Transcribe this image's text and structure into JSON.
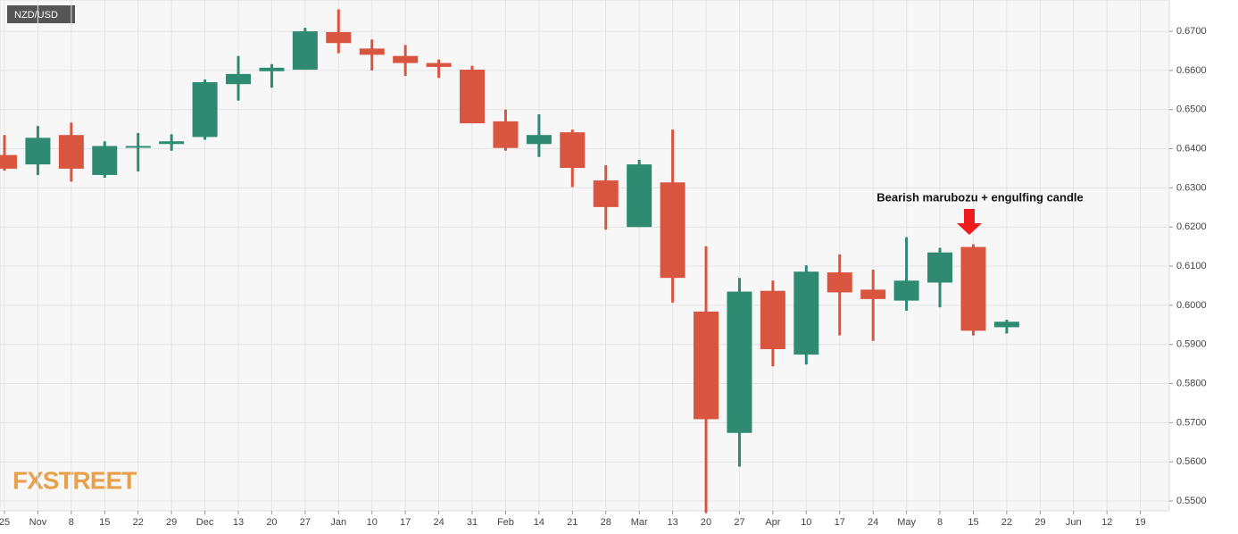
{
  "chart_data": {
    "type": "candlestick",
    "title": "NZD/USD",
    "annotation": "Bearish marubozu + engulfing candle",
    "logo": "FXSTREET",
    "up_color": "#2e8b72",
    "down_color": "#d9553f",
    "grid": true,
    "categories": [
      "25",
      "Nov",
      "8",
      "15",
      "22",
      "29",
      "Dec",
      "13",
      "20",
      "27",
      "Jan",
      "10",
      "17",
      "24",
      "31",
      "Feb",
      "14",
      "21",
      "28",
      "Mar",
      "13",
      "20",
      "27",
      "Apr",
      "10",
      "17",
      "24",
      "May",
      "8",
      "15",
      "22",
      "29",
      "Jun",
      "12",
      "19"
    ],
    "open": [
      0.6384,
      0.636,
      0.6435,
      0.6333,
      0.6405,
      0.6412,
      0.643,
      0.6565,
      0.6598,
      0.6602,
      0.6698,
      0.6656,
      0.6637,
      0.6619,
      0.6602,
      0.647,
      0.6412,
      0.6442,
      0.6319,
      0.62,
      0.6314,
      0.5984,
      0.5674,
      0.6037,
      0.5874,
      0.6084,
      0.604,
      0.6012,
      0.6058,
      0.6149,
      0.5944,
      null,
      null,
      null,
      null
    ],
    "high": [
      0.6435,
      0.6458,
      0.6467,
      0.6419,
      0.644,
      0.6437,
      0.6577,
      0.6637,
      0.6616,
      0.6709,
      0.6756,
      0.6679,
      0.6665,
      0.6628,
      0.6612,
      0.65,
      0.6488,
      0.6449,
      0.6358,
      0.6372,
      0.6449,
      0.6151,
      0.607,
      0.6063,
      0.6102,
      0.613,
      0.6091,
      0.6174,
      0.6147,
      0.6156,
      0.5963,
      null,
      null,
      null,
      null
    ],
    "low": [
      0.6344,
      0.6333,
      0.6316,
      0.6326,
      0.6342,
      0.6395,
      0.6423,
      0.6523,
      0.6556,
      0.6602,
      0.6644,
      0.66,
      0.6586,
      0.6581,
      0.6465,
      0.6395,
      0.6379,
      0.6302,
      0.6193,
      0.62,
      0.6007,
      0.547,
      0.5588,
      0.5844,
      0.5849,
      0.5923,
      0.5909,
      0.5986,
      0.5995,
      0.5923,
      0.5928,
      null,
      null,
      null,
      null
    ],
    "close": [
      0.6349,
      0.6428,
      0.6349,
      0.6407,
      0.6407,
      0.6419,
      0.657,
      0.6591,
      0.6607,
      0.67,
      0.667,
      0.664,
      0.6619,
      0.6609,
      0.6465,
      0.6402,
      0.6435,
      0.6351,
      0.6251,
      0.636,
      0.607,
      0.5709,
      0.6035,
      0.5888,
      0.6086,
      0.6033,
      0.6016,
      0.6063,
      0.6135,
      0.5935,
      0.5958,
      null,
      null,
      null,
      null
    ],
    "ylim": [
      0.5475,
      0.678
    ],
    "yticks": [
      {
        "value": 0.55,
        "label": "0.5500"
      },
      {
        "value": 0.56,
        "label": "0.5600"
      },
      {
        "value": 0.57,
        "label": "0.5700"
      },
      {
        "value": 0.58,
        "label": "0.5800"
      },
      {
        "value": 0.59,
        "label": "0.5900"
      },
      {
        "value": 0.6,
        "label": "0.6000"
      },
      {
        "value": 0.61,
        "label": "0.6100"
      },
      {
        "value": 0.62,
        "label": "0.6200"
      },
      {
        "value": 0.63,
        "label": "0.6300"
      },
      {
        "value": 0.64,
        "label": "0.6400"
      },
      {
        "value": 0.65,
        "label": "0.6500"
      },
      {
        "value": 0.66,
        "label": "0.6600"
      },
      {
        "value": 0.67,
        "label": "0.6700"
      }
    ]
  }
}
